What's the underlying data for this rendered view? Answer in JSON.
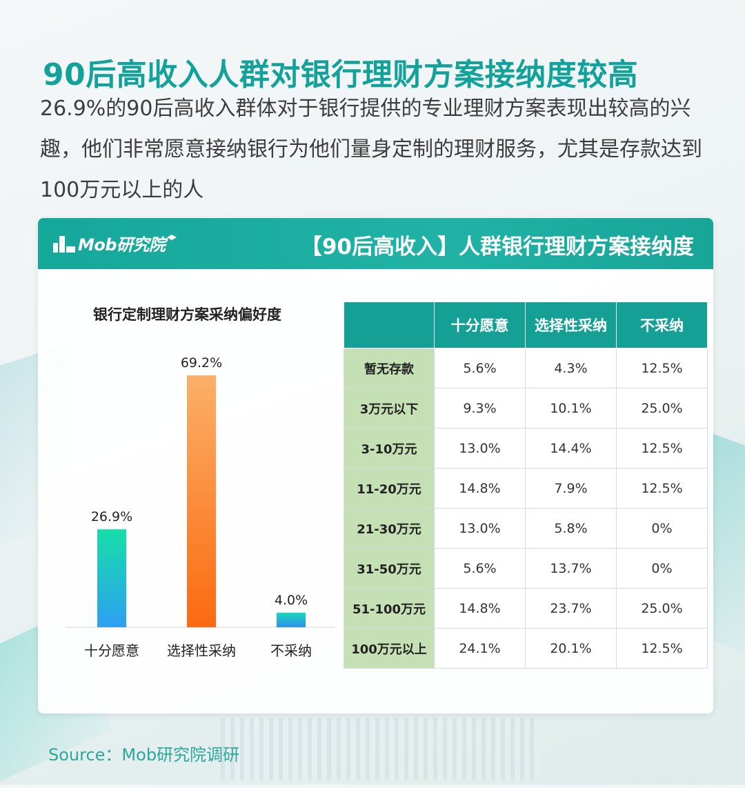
{
  "title": "90后高收入人群对银行理财方案接纳度较高",
  "description": "26.9%的90后高收入群体对于银行提供的专业理财方案表现出较高的兴趣，他们非常愿意接纳银行为他们量身定制的理财服务，尤其是存款达到100万元以上的人",
  "card": {
    "logo_text": "Mob研究院",
    "title": "【90后高收入】人群银行理财方案接纳度"
  },
  "chart_data": {
    "type": "bar",
    "title": "银行定制理财方案采纳偏好度",
    "categories": [
      "十分愿意",
      "选择性采纳",
      "不采纳"
    ],
    "values": [
      26.9,
      69.2,
      4.0
    ],
    "value_labels": [
      "26.9%",
      "69.2%",
      "4.0%"
    ],
    "ylim": [
      0,
      100
    ],
    "grid": false,
    "colors": [
      [
        "#16dfa8",
        "#2e9ff2"
      ],
      [
        "#fbb068",
        "#fb6a10"
      ],
      [
        "#18d9b8",
        "#2f8ff0"
      ]
    ]
  },
  "table": {
    "headers": [
      "",
      "十分愿意",
      "选择性采纳",
      "不采纳"
    ],
    "rows": [
      [
        "暂无存款",
        "5.6%",
        "4.3%",
        "12.5%"
      ],
      [
        "3万元以下",
        "9.3%",
        "10.1%",
        "25.0%"
      ],
      [
        "3-10万元",
        "13.0%",
        "14.4%",
        "12.5%"
      ],
      [
        "11-20万元",
        "14.8%",
        "7.9%",
        "12.5%"
      ],
      [
        "21-30万元",
        "13.0%",
        "5.8%",
        "0%"
      ],
      [
        "31-50万元",
        "5.6%",
        "13.7%",
        "0%"
      ],
      [
        "51-100万元",
        "14.8%",
        "23.7%",
        "25.0%"
      ],
      [
        "100万元以上",
        "24.1%",
        "20.1%",
        "12.5%"
      ]
    ]
  },
  "source": "Source：Mob研究院调研"
}
